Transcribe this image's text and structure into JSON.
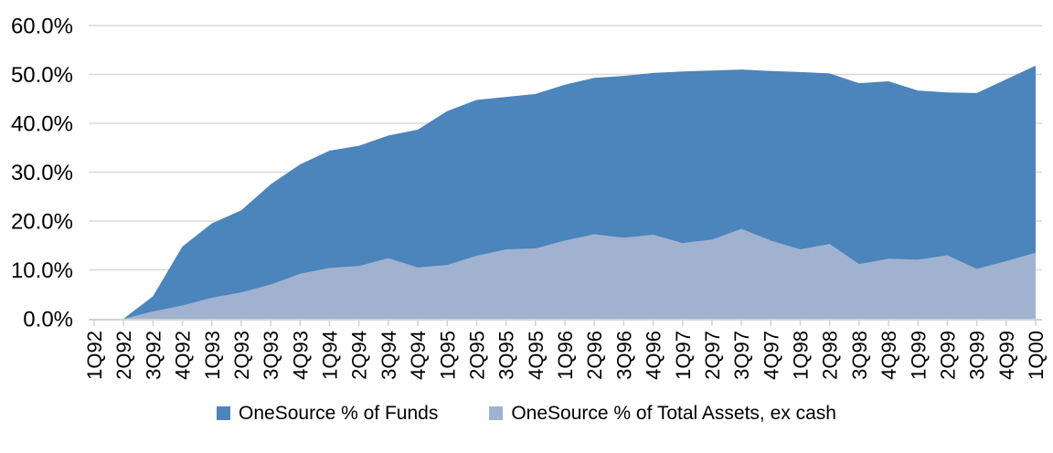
{
  "chart_data": {
    "type": "area",
    "stacked": false,
    "categories": [
      "1Q92",
      "2Q92",
      "3Q92",
      "4Q92",
      "1Q93",
      "2Q93",
      "3Q93",
      "4Q93",
      "1Q94",
      "2Q94",
      "3Q94",
      "4Q94",
      "1Q95",
      "2Q95",
      "3Q95",
      "4Q95",
      "1Q96",
      "2Q96",
      "3Q96",
      "4Q96",
      "1Q97",
      "2Q97",
      "3Q97",
      "4Q97",
      "1Q98",
      "2Q98",
      "3Q98",
      "4Q98",
      "1Q99",
      "2Q99",
      "3Q99",
      "4Q99",
      "1Q00"
    ],
    "series": [
      {
        "name": "OneSource % of Funds",
        "color": "#4C84BC",
        "values": [
          0.0,
          0.0,
          4.6,
          14.8,
          19.5,
          22.2,
          27.5,
          31.6,
          34.4,
          35.4,
          37.5,
          38.7,
          42.5,
          44.8,
          45.4,
          46.0,
          47.9,
          49.3,
          49.7,
          50.3,
          50.6,
          50.8,
          51.0,
          50.7,
          50.5,
          50.2,
          48.2,
          48.6,
          46.7,
          46.3,
          46.2,
          49.0,
          51.8
        ]
      },
      {
        "name": "OneSource % of Total Assets, ex cash",
        "color": "#A0B2D0",
        "values": [
          0.0,
          0.0,
          1.5,
          2.7,
          4.3,
          5.4,
          7.0,
          9.2,
          10.4,
          10.8,
          12.4,
          10.5,
          11.0,
          12.9,
          14.2,
          14.4,
          16.0,
          17.3,
          16.6,
          17.2,
          15.5,
          16.2,
          18.4,
          16.0,
          14.2,
          15.3,
          11.2,
          12.3,
          12.1,
          13.0,
          10.2,
          11.8,
          13.5
        ]
      }
    ],
    "ylim": [
      0,
      60
    ],
    "yticks": {
      "values": [
        0,
        10,
        20,
        30,
        40,
        50,
        60
      ],
      "labels": [
        "0.0%",
        "10.0%",
        "20.0%",
        "30.0%",
        "40.0%",
        "50.0%",
        "60.0%"
      ]
    },
    "grid": true,
    "legend_position": "bottom",
    "gridline_color": "#D9D9D9",
    "axis_color": "#D3D3D3",
    "text_color": "#000000"
  }
}
